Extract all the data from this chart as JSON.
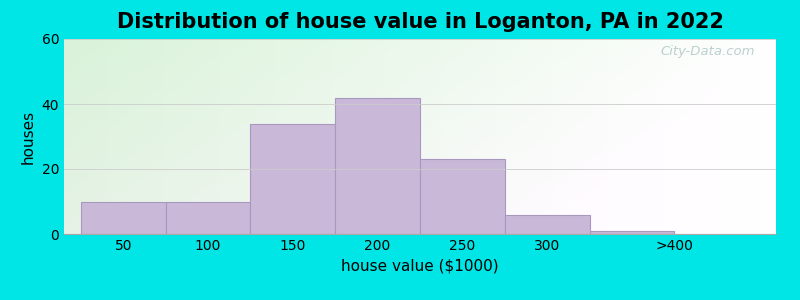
{
  "title": "Distribution of house value in Loganton, PA in 2022",
  "xlabel": "house value ($1000)",
  "ylabel": "houses",
  "bar_values": [
    10,
    10,
    34,
    42,
    23,
    6,
    1
  ],
  "bar_left_edges": [
    0,
    50,
    100,
    150,
    200,
    250,
    300
  ],
  "bar_widths": [
    50,
    50,
    50,
    50,
    50,
    50,
    50
  ],
  "bar_labels": [
    "50",
    "100",
    "150",
    "200",
    "250",
    "300",
    ">400"
  ],
  "bar_color": "#c9b8d8",
  "bar_edgecolor": "#a898c0",
  "xlim": [
    -10,
    410
  ],
  "ylim": [
    0,
    60
  ],
  "yticks": [
    0,
    20,
    40,
    60
  ],
  "xticks": [
    25,
    75,
    125,
    175,
    225,
    275,
    350
  ],
  "figure_bg": "#00e5e5",
  "title_fontsize": 15,
  "axis_label_fontsize": 11,
  "tick_fontsize": 10,
  "watermark_text": "City-Data.com",
  "watermark_color": "#b0c8c8"
}
